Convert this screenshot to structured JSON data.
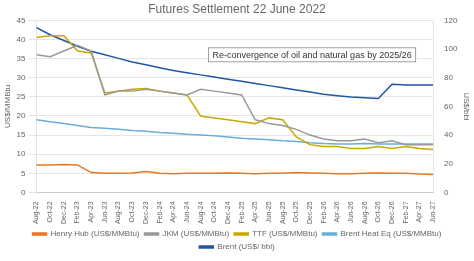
{
  "chart_data": {
    "type": "line",
    "title": "Futures Settlement 22 June 2022",
    "ylabel": "US$/MMBtu",
    "y2label": "US$/bbl",
    "annotation": "Re-convergence of oil and natural gas by 2025/26",
    "categories": [
      "Aug-22",
      "Oct-22",
      "Dec-22",
      "Feb-23",
      "Apr-23",
      "Jun-23",
      "Aug-23",
      "Oct-23",
      "Dec-23",
      "Feb-24",
      "Apr-24",
      "Jun-24",
      "Aug-24",
      "Oct-24",
      "Dec-24",
      "Feb-25",
      "Apr-25",
      "Jun-25",
      "Aug-25",
      "Oct-25",
      "Dec-25",
      "Feb-26",
      "Apr-26",
      "Jun-26",
      "Aug-26",
      "Oct-26",
      "Dec-26",
      "Feb-27",
      "Apr-27",
      "Jun-27"
    ],
    "series": [
      {
        "name": "Henry Hub (US$/MMBtu)",
        "color": "#E87722",
        "values": [
          7.2,
          7.2,
          7.3,
          7.2,
          5.2,
          5.0,
          5.0,
          5.1,
          5.5,
          5.0,
          4.9,
          5.0,
          5.0,
          5.0,
          5.1,
          5.0,
          4.9,
          5.0,
          5.0,
          5.2,
          5.1,
          5.0,
          4.9,
          4.9,
          5.0,
          5.1,
          5.0,
          5.0,
          4.8,
          4.7
        ]
      },
      {
        "name": "JKM (US$/MMBtu)",
        "color": "#999999",
        "values": [
          36.0,
          35.5,
          37.0,
          38.5,
          37.0,
          25.5,
          26.5,
          26.5,
          27.0,
          26.5,
          26.0,
          25.5,
          27.0,
          26.5,
          26.0,
          25.5,
          19.0,
          18.0,
          17.5,
          16.5,
          15.0,
          14.0,
          13.5,
          13.5,
          14.0,
          13.0,
          13.5,
          12.5,
          12.5,
          12.5
        ]
      },
      {
        "name": "TTF (US$/MMBtu)",
        "color": "#C8A800",
        "values": [
          40.5,
          41.0,
          41.0,
          37.0,
          36.5,
          26.0,
          26.5,
          27.0,
          27.2,
          26.5,
          26.0,
          25.5,
          20.0,
          19.5,
          19.0,
          18.5,
          18.0,
          19.5,
          19.0,
          14.5,
          12.5,
          12.0,
          12.0,
          11.5,
          11.5,
          12.0,
          11.5,
          12.0,
          11.5,
          11.2
        ]
      },
      {
        "name": "Brent Heat Eq (US$/MMBtu)",
        "color": "#6BAED6",
        "values": [
          19.0,
          18.5,
          18.0,
          17.5,
          17.0,
          16.8,
          16.5,
          16.2,
          16.0,
          15.7,
          15.5,
          15.2,
          15.0,
          14.8,
          14.5,
          14.2,
          14.0,
          13.8,
          13.5,
          13.3,
          13.0,
          12.8,
          12.7,
          12.7,
          12.8,
          12.7,
          12.7,
          12.7,
          12.7,
          12.7
        ]
      },
      {
        "name": "Brent (US$/ bbl)",
        "color": "#2255A4",
        "axis": "y2",
        "values": [
          115.0,
          110.0,
          106.0,
          102.0,
          98.5,
          96.0,
          93.5,
          91.0,
          89.0,
          87.0,
          85.0,
          83.5,
          82.0,
          80.5,
          79.0,
          77.5,
          76.0,
          74.5,
          73.0,
          71.5,
          70.0,
          68.5,
          67.5,
          66.5,
          66.0,
          65.5,
          75.5,
          75.0,
          75.0,
          75.0
        ]
      }
    ],
    "ylim": [
      0,
      45
    ],
    "yticks": [
      0,
      5,
      10,
      15,
      20,
      25,
      30,
      35,
      40,
      45
    ],
    "y2lim": [
      0,
      120
    ],
    "y2ticks": [
      0,
      20,
      40,
      60,
      80,
      100,
      120
    ],
    "grid": true,
    "legend": "bottom"
  }
}
